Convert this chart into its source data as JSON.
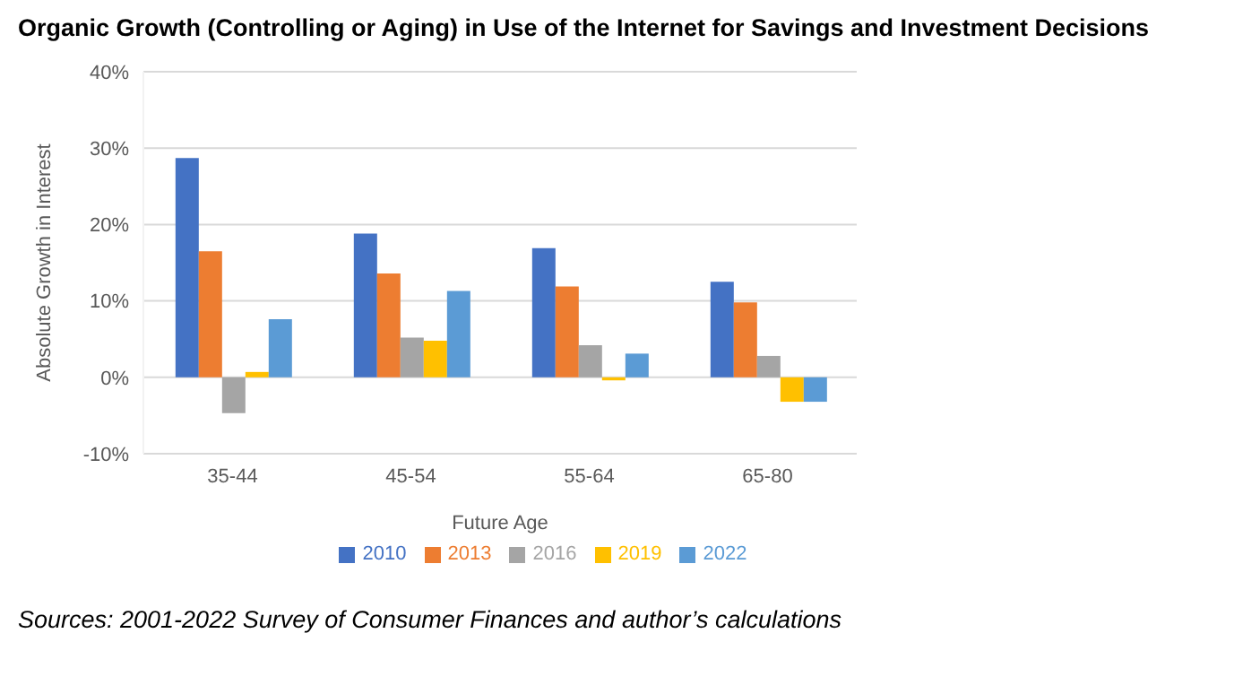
{
  "chart_data": {
    "type": "bar",
    "title": "Organic Growth (Controlling or Aging) in Use of the Internet for Savings and Investment Decisions",
    "xlabel": "Future Age",
    "ylabel": "Absolute Growth in Interest",
    "categories": [
      "35-44",
      "45-54",
      "55-64",
      "65-80"
    ],
    "series": [
      {
        "name": "2010",
        "color": "#4472c4",
        "values": [
          28.7,
          18.8,
          16.9,
          12.5
        ]
      },
      {
        "name": "2013",
        "color": "#ed7d31",
        "values": [
          16.5,
          13.6,
          11.9,
          9.8
        ]
      },
      {
        "name": "2016",
        "color": "#a5a5a5",
        "values": [
          -4.7,
          5.2,
          4.2,
          2.8
        ]
      },
      {
        "name": "2019",
        "color": "#ffc000",
        "values": [
          0.7,
          4.8,
          -0.4,
          -3.2
        ]
      },
      {
        "name": "2022",
        "color": "#5b9bd5",
        "values": [
          7.6,
          11.3,
          3.1,
          -3.2
        ]
      }
    ],
    "ylim": [
      -10,
      40
    ],
    "yticks": [
      {
        "value": -10,
        "label": "-10%"
      },
      {
        "value": 0,
        "label": "0%"
      },
      {
        "value": 10,
        "label": "10%"
      },
      {
        "value": 20,
        "label": "20%"
      },
      {
        "value": 30,
        "label": "30%"
      },
      {
        "value": 40,
        "label": "40%"
      }
    ],
    "grid": "y",
    "legend": "bottom",
    "annotations": [
      "Sources: 2001-2022 Survey of Consumer Finances and author’s calculations"
    ]
  }
}
